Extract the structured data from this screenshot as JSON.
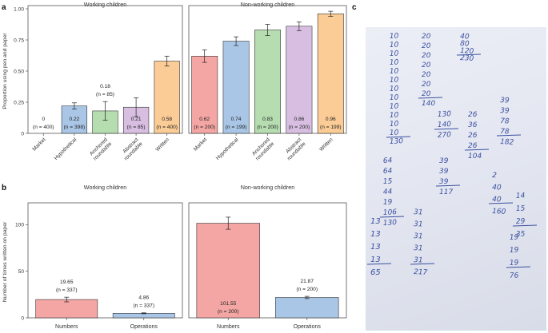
{
  "panel_labels": {
    "a": "a",
    "b": "b",
    "c": "c"
  },
  "colors": {
    "Market": "#f4a6a4",
    "Hypothetical": "#a9c6e6",
    "Anchored roundable": "#b5ddb0",
    "Abstract roundable": "#d8bfe2",
    "Written": "#fbcc96",
    "Numbers": "#f4a6a4",
    "Operations": "#a9c6e6"
  },
  "chart_data": [
    {
      "id": "a-working",
      "type": "bar",
      "title": "Working children",
      "ylabel": "Proportion using pen and paper",
      "ylim": [
        0,
        1
      ],
      "yticks": [
        "0",
        "0.25",
        "0.50",
        "0.75",
        "1.00"
      ],
      "categories": [
        [
          "Market"
        ],
        [
          "Hypothetical"
        ],
        [
          "Anchored",
          "roundable"
        ],
        [
          "Abstract",
          "roundable"
        ],
        [
          "Written"
        ]
      ],
      "color_keys": [
        "Market",
        "Hypothetical",
        "Anchored roundable",
        "Abstract roundable",
        "Written"
      ],
      "values": [
        0,
        0.22,
        0.18,
        0.21,
        0.58
      ],
      "errors": [
        0,
        0.025,
        0.075,
        0.075,
        0.04
      ],
      "value_labels": [
        "0",
        "0.22",
        "0.18",
        "0.21",
        "0.58"
      ],
      "n_labels": [
        "(n = 400)",
        "(n = 398)",
        "(n = 85)",
        "(n = 85)",
        "(n = 400)"
      ]
    },
    {
      "id": "a-nonworking",
      "type": "bar",
      "title": "Non-working children",
      "ylim": [
        0,
        1
      ],
      "categories": [
        [
          "Market"
        ],
        [
          "Hypothetical"
        ],
        [
          "Anchored",
          "roundable"
        ],
        [
          "Abstract",
          "roundable"
        ],
        [
          "Written"
        ]
      ],
      "color_keys": [
        "Market",
        "Hypothetical",
        "Anchored roundable",
        "Abstract roundable",
        "Written"
      ],
      "values": [
        0.62,
        0.74,
        0.83,
        0.86,
        0.96
      ],
      "errors": [
        0.05,
        0.035,
        0.045,
        0.035,
        0.02
      ],
      "value_labels": [
        "0.62",
        "0.74",
        "0.83",
        "0.86",
        "0.96"
      ],
      "n_labels": [
        "(n = 200)",
        "(n = 199)",
        "(n = 200)",
        "(n = 200)",
        "(n = 199)"
      ]
    },
    {
      "id": "b-working",
      "type": "bar",
      "title": "Working children",
      "ylabel": "Number of times written on paper",
      "ylim": [
        0,
        120
      ],
      "yticks": [
        "0",
        "50",
        "100"
      ],
      "categories": [
        [
          "Numbers"
        ],
        [
          "Operations"
        ]
      ],
      "color_keys": [
        "Numbers",
        "Operations"
      ],
      "values": [
        19.65,
        4.86
      ],
      "errors": [
        2.5,
        0.5
      ],
      "value_labels": [
        "19.65",
        "4.86"
      ],
      "n_labels": [
        "(n = 337)",
        "(n = 337)"
      ]
    },
    {
      "id": "b-nonworking",
      "type": "bar",
      "title": "Non-working children",
      "ylim": [
        0,
        120
      ],
      "categories": [
        [
          "Numbers"
        ],
        [
          "Operations"
        ]
      ],
      "color_keys": [
        "Numbers",
        "Operations"
      ],
      "values": [
        101.55,
        21.87
      ],
      "errors": [
        6.5,
        1.2
      ],
      "value_labels": [
        "101.55",
        "21.87"
      ],
      "n_labels": [
        "(n = 200)",
        "(n = 200)"
      ]
    }
  ],
  "photo": {
    "columns": [
      [
        "10",
        "10",
        "10",
        "10",
        "10",
        "10",
        "10",
        "10",
        "10",
        "10",
        "10",
        "10",
        "130"
      ],
      [
        "20",
        "20",
        "20",
        "20",
        "20",
        "20",
        "20",
        "140"
      ],
      [
        "40",
        "80",
        "120",
        "230"
      ],
      [
        "130",
        "140",
        "270"
      ],
      [
        "26",
        "36",
        "26",
        "26",
        "104"
      ],
      [
        "39",
        "39",
        "78",
        "78",
        "182"
      ],
      [
        "64",
        "64",
        "15",
        "44",
        "19",
        "106",
        "130"
      ],
      [
        "39",
        "39",
        "39",
        "117"
      ],
      [
        "2",
        "40",
        "40",
        "160"
      ],
      [
        "14",
        "15",
        "29",
        "35"
      ],
      [
        "13",
        "13",
        "13",
        "13",
        "65"
      ],
      [
        "31",
        "31",
        "31",
        "31",
        "31",
        "217"
      ],
      [
        "19",
        "19",
        "19",
        "76"
      ]
    ]
  }
}
